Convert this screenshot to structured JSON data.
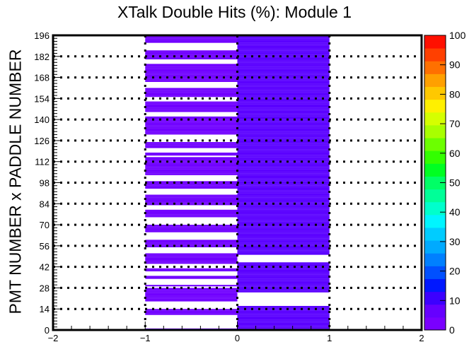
{
  "chart_data": {
    "type": "heatmap",
    "title": "XTalk Double Hits (%): Module 1",
    "xlabel": "",
    "ylabel": "PMT NUMBER x PADDLE NUMBER",
    "xlim": [
      -2,
      2
    ],
    "ylim": [
      0,
      196
    ],
    "x_ticks": [
      "−2",
      "−1",
      "0",
      "1",
      "2"
    ],
    "y_ticks": [
      "0",
      "14",
      "28",
      "42",
      "56",
      "70",
      "84",
      "98",
      "112",
      "126",
      "140",
      "154",
      "168",
      "182",
      "196"
    ],
    "z_ticks": [
      "0",
      "10",
      "20",
      "30",
      "40",
      "50",
      "60",
      "70",
      "80",
      "90",
      "100"
    ],
    "zlim": [
      0,
      100
    ],
    "colorbar": [
      "#7a00ff",
      "#6600ff",
      "#3c00ff",
      "#0018ff",
      "#0050ff",
      "#0080ff",
      "#00aaff",
      "#00ccff",
      "#00f5ff",
      "#00ffcc",
      "#00ff98",
      "#00ff66",
      "#00ff22",
      "#33ff00",
      "#6cff00",
      "#a8ff00",
      "#d5ff00",
      "#fff000",
      "#ffc800",
      "#ffa000",
      "#ff7000",
      "#ff4000",
      "#ff1000"
    ],
    "columns": [
      {
        "x_range": [
          -1,
          0
        ],
        "color": "#7000ff",
        "filled_bins": [
          0,
          10,
          11,
          12,
          13,
          19,
          20,
          21,
          22,
          23,
          24,
          25,
          26,
          27,
          29,
          34,
          35,
          39,
          40,
          44,
          45,
          46,
          47,
          48,
          49,
          50,
          55,
          56,
          57,
          58,
          59,
          65,
          66,
          67,
          68,
          69,
          75,
          76,
          77,
          78,
          79,
          83,
          84,
          85,
          86,
          87,
          88,
          89,
          94,
          95,
          96,
          97,
          98,
          103,
          104,
          105,
          106,
          107,
          108,
          109,
          110,
          111,
          112,
          113,
          114,
          116,
          117,
          121,
          122,
          123,
          124,
          130,
          131,
          132,
          133,
          134,
          135,
          136,
          137,
          138,
          139,
          140,
          141,
          145,
          146,
          147,
          148,
          149,
          150,
          151,
          155,
          156,
          157,
          158,
          159,
          160,
          165,
          166,
          167,
          168,
          169,
          170,
          171,
          172,
          173,
          174,
          175,
          176,
          180,
          181,
          182,
          183,
          184,
          185,
          191,
          192,
          193,
          194,
          195
        ]
      },
      {
        "x_range": [
          0,
          1
        ],
        "color": "#5a00ff",
        "filled_bins": [
          0,
          1,
          2,
          3,
          4,
          5,
          6,
          7,
          8,
          9,
          10,
          11,
          12,
          13,
          14,
          15,
          25,
          26,
          27,
          28,
          29,
          30,
          31,
          32,
          33,
          34,
          35,
          36,
          37,
          38,
          39,
          40,
          41,
          42,
          43,
          44,
          50,
          51,
          52,
          53,
          54,
          55,
          56,
          57,
          58,
          59,
          60,
          61,
          62,
          63,
          64,
          65,
          66,
          67,
          68,
          69,
          70,
          71,
          72,
          73,
          74,
          75,
          76,
          77,
          78,
          79,
          80,
          81,
          82,
          83,
          84,
          85,
          86,
          87,
          88,
          89,
          90,
          91,
          92,
          93,
          94,
          95,
          96,
          97,
          98,
          99,
          100,
          101,
          102,
          103,
          104,
          105,
          106,
          107,
          108,
          109,
          110,
          111,
          112,
          113,
          114,
          115,
          116,
          117,
          118,
          119,
          120,
          121,
          122,
          123,
          124,
          125,
          126,
          127,
          128,
          129,
          130,
          131,
          132,
          133,
          134,
          135,
          136,
          137,
          138,
          139,
          140,
          141,
          142,
          143,
          144,
          145,
          146,
          147,
          148,
          149,
          150,
          151,
          152,
          153,
          154,
          155,
          156,
          157,
          158,
          159,
          160,
          161,
          162,
          163,
          164,
          165,
          166,
          167,
          168,
          169,
          170,
          171,
          172,
          173,
          174,
          175,
          176,
          177,
          178,
          179,
          180,
          181,
          182,
          183,
          184,
          185,
          186,
          187,
          188,
          189,
          190,
          191,
          192,
          193,
          194,
          195
        ]
      }
    ],
    "grid": "dotted horizontal lines at every y tick; dotted vertical lines at x = -1, 0, 1"
  }
}
